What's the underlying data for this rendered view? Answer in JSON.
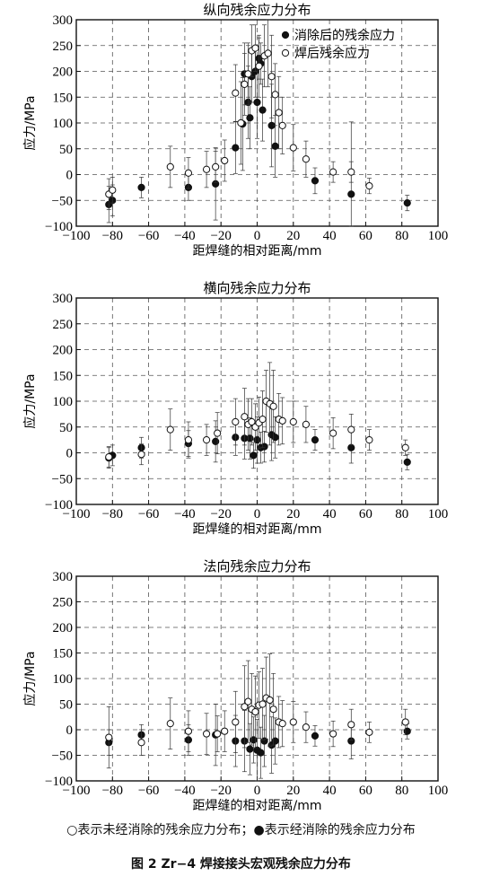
{
  "chart_data": [
    {
      "type": "scatter",
      "title": "纵向残余应力分布",
      "xlabel": "距焊缝的相对距离/mm",
      "ylabel": "应力/MPa",
      "xlim": [
        -100,
        100
      ],
      "ylim": [
        -100,
        300
      ],
      "xticks": [
        -100,
        -80,
        -60,
        -40,
        -20,
        0,
        20,
        40,
        60,
        80,
        100
      ],
      "yticks": [
        -100,
        -50,
        0,
        50,
        100,
        150,
        200,
        250,
        300
      ],
      "grid": true,
      "legend_position": "top-right",
      "series": [
        {
          "name": "消除后的残余应力",
          "marker": "filled-circle",
          "points": [
            {
              "x": -82,
              "y": -58,
              "err": 35
            },
            {
              "x": -80,
              "y": -50,
              "err": 30
            },
            {
              "x": -64,
              "y": -25,
              "err": 20
            },
            {
              "x": -38,
              "y": -25,
              "err": 25
            },
            {
              "x": -23,
              "y": -18,
              "err": 70
            },
            {
              "x": -12,
              "y": 52,
              "err": 50
            },
            {
              "x": -8,
              "y": 98,
              "err": 90
            },
            {
              "x": -7,
              "y": 195,
              "err": 60
            },
            {
              "x": -5,
              "y": 140,
              "err": 70
            },
            {
              "x": -4,
              "y": 110,
              "err": 60
            },
            {
              "x": -3,
              "y": 190,
              "err": 50
            },
            {
              "x": -1,
              "y": 200,
              "err": 50
            },
            {
              "x": 0,
              "y": 140,
              "err": 70
            },
            {
              "x": 1,
              "y": 225,
              "err": 40
            },
            {
              "x": 2,
              "y": 215,
              "err": 40
            },
            {
              "x": 3,
              "y": 125,
              "err": 60
            },
            {
              "x": 8,
              "y": 95,
              "err": 80
            },
            {
              "x": 10,
              "y": 55,
              "err": 60
            },
            {
              "x": 32,
              "y": -12,
              "err": 25
            },
            {
              "x": 52,
              "y": -38,
              "err": 140
            },
            {
              "x": 83,
              "y": -55,
              "err": 15
            }
          ]
        },
        {
          "name": "焊后残余应力",
          "marker": "open-circle",
          "points": [
            {
              "x": -82,
              "y": -38,
              "err": 30
            },
            {
              "x": -80,
              "y": -30,
              "err": 25
            },
            {
              "x": -48,
              "y": 15,
              "err": 40
            },
            {
              "x": -38,
              "y": 3,
              "err": 30
            },
            {
              "x": -28,
              "y": 10,
              "err": 35
            },
            {
              "x": -23,
              "y": 15,
              "err": 30
            },
            {
              "x": -18,
              "y": 27,
              "err": 40
            },
            {
              "x": -12,
              "y": 158,
              "err": 55
            },
            {
              "x": -9,
              "y": 100,
              "err": 80
            },
            {
              "x": -7,
              "y": 175,
              "err": 60
            },
            {
              "x": -5,
              "y": 195,
              "err": 60
            },
            {
              "x": -3,
              "y": 240,
              "err": 50
            },
            {
              "x": -1,
              "y": 245,
              "err": 45
            },
            {
              "x": 1,
              "y": 210,
              "err": 60
            },
            {
              "x": 4,
              "y": 230,
              "err": 60
            },
            {
              "x": 6,
              "y": 235,
              "err": 65
            },
            {
              "x": 8,
              "y": 190,
              "err": 80
            },
            {
              "x": 10,
              "y": 155,
              "err": 60
            },
            {
              "x": 12,
              "y": 120,
              "err": 70
            },
            {
              "x": 14,
              "y": 95,
              "err": 55
            },
            {
              "x": 20,
              "y": 52,
              "err": 45
            },
            {
              "x": 27,
              "y": 30,
              "err": 35
            },
            {
              "x": 42,
              "y": 5,
              "err": 20
            },
            {
              "x": 52,
              "y": 5,
              "err": 20
            },
            {
              "x": 62,
              "y": -22,
              "err": 15
            }
          ]
        }
      ]
    },
    {
      "type": "scatter",
      "title": "横向残余应力分布",
      "xlabel": "距焊缝的相对距离/mm",
      "ylabel": "应力/MPa",
      "xlim": [
        -100,
        100
      ],
      "ylim": [
        -100,
        300
      ],
      "xticks": [
        -100,
        -80,
        -60,
        -40,
        -20,
        0,
        20,
        40,
        60,
        80,
        100
      ],
      "yticks": [
        -100,
        -50,
        0,
        50,
        100,
        150,
        200,
        250,
        300
      ],
      "grid": true,
      "series": [
        {
          "marker": "filled-circle",
          "points": [
            {
              "x": -82,
              "y": -10,
              "err": 20
            },
            {
              "x": -80,
              "y": -5,
              "err": 20
            },
            {
              "x": -64,
              "y": 10,
              "err": 20
            },
            {
              "x": -38,
              "y": 18,
              "err": 25
            },
            {
              "x": -23,
              "y": 22,
              "err": 40
            },
            {
              "x": -12,
              "y": 30,
              "err": 35
            },
            {
              "x": -7,
              "y": 28,
              "err": 40
            },
            {
              "x": -4,
              "y": 28,
              "err": 40
            },
            {
              "x": -2,
              "y": -5,
              "err": 25
            },
            {
              "x": 0,
              "y": 25,
              "err": 45
            },
            {
              "x": 2,
              "y": 10,
              "err": 30
            },
            {
              "x": 4,
              "y": 12,
              "err": 30
            },
            {
              "x": 8,
              "y": 35,
              "err": 50
            },
            {
              "x": 10,
              "y": 30,
              "err": 40
            },
            {
              "x": 32,
              "y": 25,
              "err": 20
            },
            {
              "x": 52,
              "y": 10,
              "err": 30
            },
            {
              "x": 83,
              "y": -18,
              "err": 15
            }
          ]
        },
        {
          "marker": "open-circle",
          "points": [
            {
              "x": -82,
              "y": -8,
              "err": 20
            },
            {
              "x": -64,
              "y": -3,
              "err": 20
            },
            {
              "x": -48,
              "y": 45,
              "err": 40
            },
            {
              "x": -38,
              "y": 25,
              "err": 35
            },
            {
              "x": -28,
              "y": 25,
              "err": 30
            },
            {
              "x": -22,
              "y": 38,
              "err": 40
            },
            {
              "x": -12,
              "y": 60,
              "err": 45
            },
            {
              "x": -7,
              "y": 70,
              "err": 55
            },
            {
              "x": -5,
              "y": 55,
              "err": 50
            },
            {
              "x": -3,
              "y": 60,
              "err": 45
            },
            {
              "x": -1,
              "y": 50,
              "err": 45
            },
            {
              "x": 1,
              "y": 58,
              "err": 50
            },
            {
              "x": 3,
              "y": 65,
              "err": 55
            },
            {
              "x": 5,
              "y": 100,
              "err": 60
            },
            {
              "x": 7,
              "y": 95,
              "err": 80
            },
            {
              "x": 9,
              "y": 90,
              "err": 70
            },
            {
              "x": 12,
              "y": 65,
              "err": 50
            },
            {
              "x": 14,
              "y": 62,
              "err": 45
            },
            {
              "x": 20,
              "y": 60,
              "err": 40
            },
            {
              "x": 27,
              "y": 55,
              "err": 35
            },
            {
              "x": 42,
              "y": 38,
              "err": 30
            },
            {
              "x": 52,
              "y": 45,
              "err": 30
            },
            {
              "x": 62,
              "y": 25,
              "err": 20
            },
            {
              "x": 82,
              "y": 10,
              "err": 15
            }
          ]
        }
      ]
    },
    {
      "type": "scatter",
      "title": "法向残余应力分布",
      "xlabel": "距焊缝的相对距离/mm",
      "ylabel": "应力/MPa",
      "xlim": [
        -100,
        100
      ],
      "ylim": [
        -100,
        300
      ],
      "xticks": [
        -100,
        -80,
        -60,
        -40,
        -20,
        0,
        20,
        40,
        60,
        80,
        100
      ],
      "yticks": [
        -100,
        -50,
        0,
        50,
        100,
        150,
        200,
        250,
        300
      ],
      "grid": true,
      "series": [
        {
          "marker": "filled-circle",
          "points": [
            {
              "x": -82,
              "y": -25,
              "err": 25
            },
            {
              "x": -64,
              "y": -10,
              "err": 20
            },
            {
              "x": -38,
              "y": -20,
              "err": 30
            },
            {
              "x": -23,
              "y": -10,
              "err": 60
            },
            {
              "x": -12,
              "y": -22,
              "err": 50
            },
            {
              "x": -7,
              "y": -22,
              "err": 60
            },
            {
              "x": -4,
              "y": -38,
              "err": 50
            },
            {
              "x": -2,
              "y": -20,
              "err": 45
            },
            {
              "x": 0,
              "y": -40,
              "err": 60
            },
            {
              "x": 2,
              "y": -45,
              "err": 50
            },
            {
              "x": 4,
              "y": -22,
              "err": 50
            },
            {
              "x": 8,
              "y": -30,
              "err": 55
            },
            {
              "x": 10,
              "y": -22,
              "err": 45
            },
            {
              "x": 32,
              "y": -12,
              "err": 20
            },
            {
              "x": 52,
              "y": -22,
              "err": 35
            },
            {
              "x": 83,
              "y": -3,
              "err": 15
            }
          ]
        },
        {
          "marker": "open-circle",
          "points": [
            {
              "x": -82,
              "y": -15,
              "err": 60
            },
            {
              "x": -64,
              "y": -25,
              "err": 25
            },
            {
              "x": -48,
              "y": 12,
              "err": 50
            },
            {
              "x": -38,
              "y": -3,
              "err": 40
            },
            {
              "x": -28,
              "y": -8,
              "err": 40
            },
            {
              "x": -22,
              "y": -8,
              "err": 35
            },
            {
              "x": -18,
              "y": -3,
              "err": 40
            },
            {
              "x": -12,
              "y": 15,
              "err": 60
            },
            {
              "x": -7,
              "y": 45,
              "err": 80
            },
            {
              "x": -5,
              "y": 55,
              "err": 80
            },
            {
              "x": -3,
              "y": 40,
              "err": 70
            },
            {
              "x": -1,
              "y": 35,
              "err": 70
            },
            {
              "x": 1,
              "y": 48,
              "err": 65
            },
            {
              "x": 3,
              "y": 50,
              "err": 70
            },
            {
              "x": 5,
              "y": 62,
              "err": 80
            },
            {
              "x": 7,
              "y": 58,
              "err": 90
            },
            {
              "x": 9,
              "y": 40,
              "err": 70
            },
            {
              "x": 12,
              "y": 15,
              "err": 50
            },
            {
              "x": 14,
              "y": 12,
              "err": 45
            },
            {
              "x": 20,
              "y": 15,
              "err": 40
            },
            {
              "x": 27,
              "y": 5,
              "err": 30
            },
            {
              "x": 42,
              "y": -8,
              "err": 25
            },
            {
              "x": 52,
              "y": 10,
              "err": 30
            },
            {
              "x": 62,
              "y": -5,
              "err": 20
            },
            {
              "x": 82,
              "y": 15,
              "err": 25
            }
          ]
        }
      ]
    }
  ],
  "note": "○表示未经消除的残余应力分布；●表示经消除的残余应力分布",
  "caption": "图 2   Zr−4 焊接接头宏观残余应力分布"
}
